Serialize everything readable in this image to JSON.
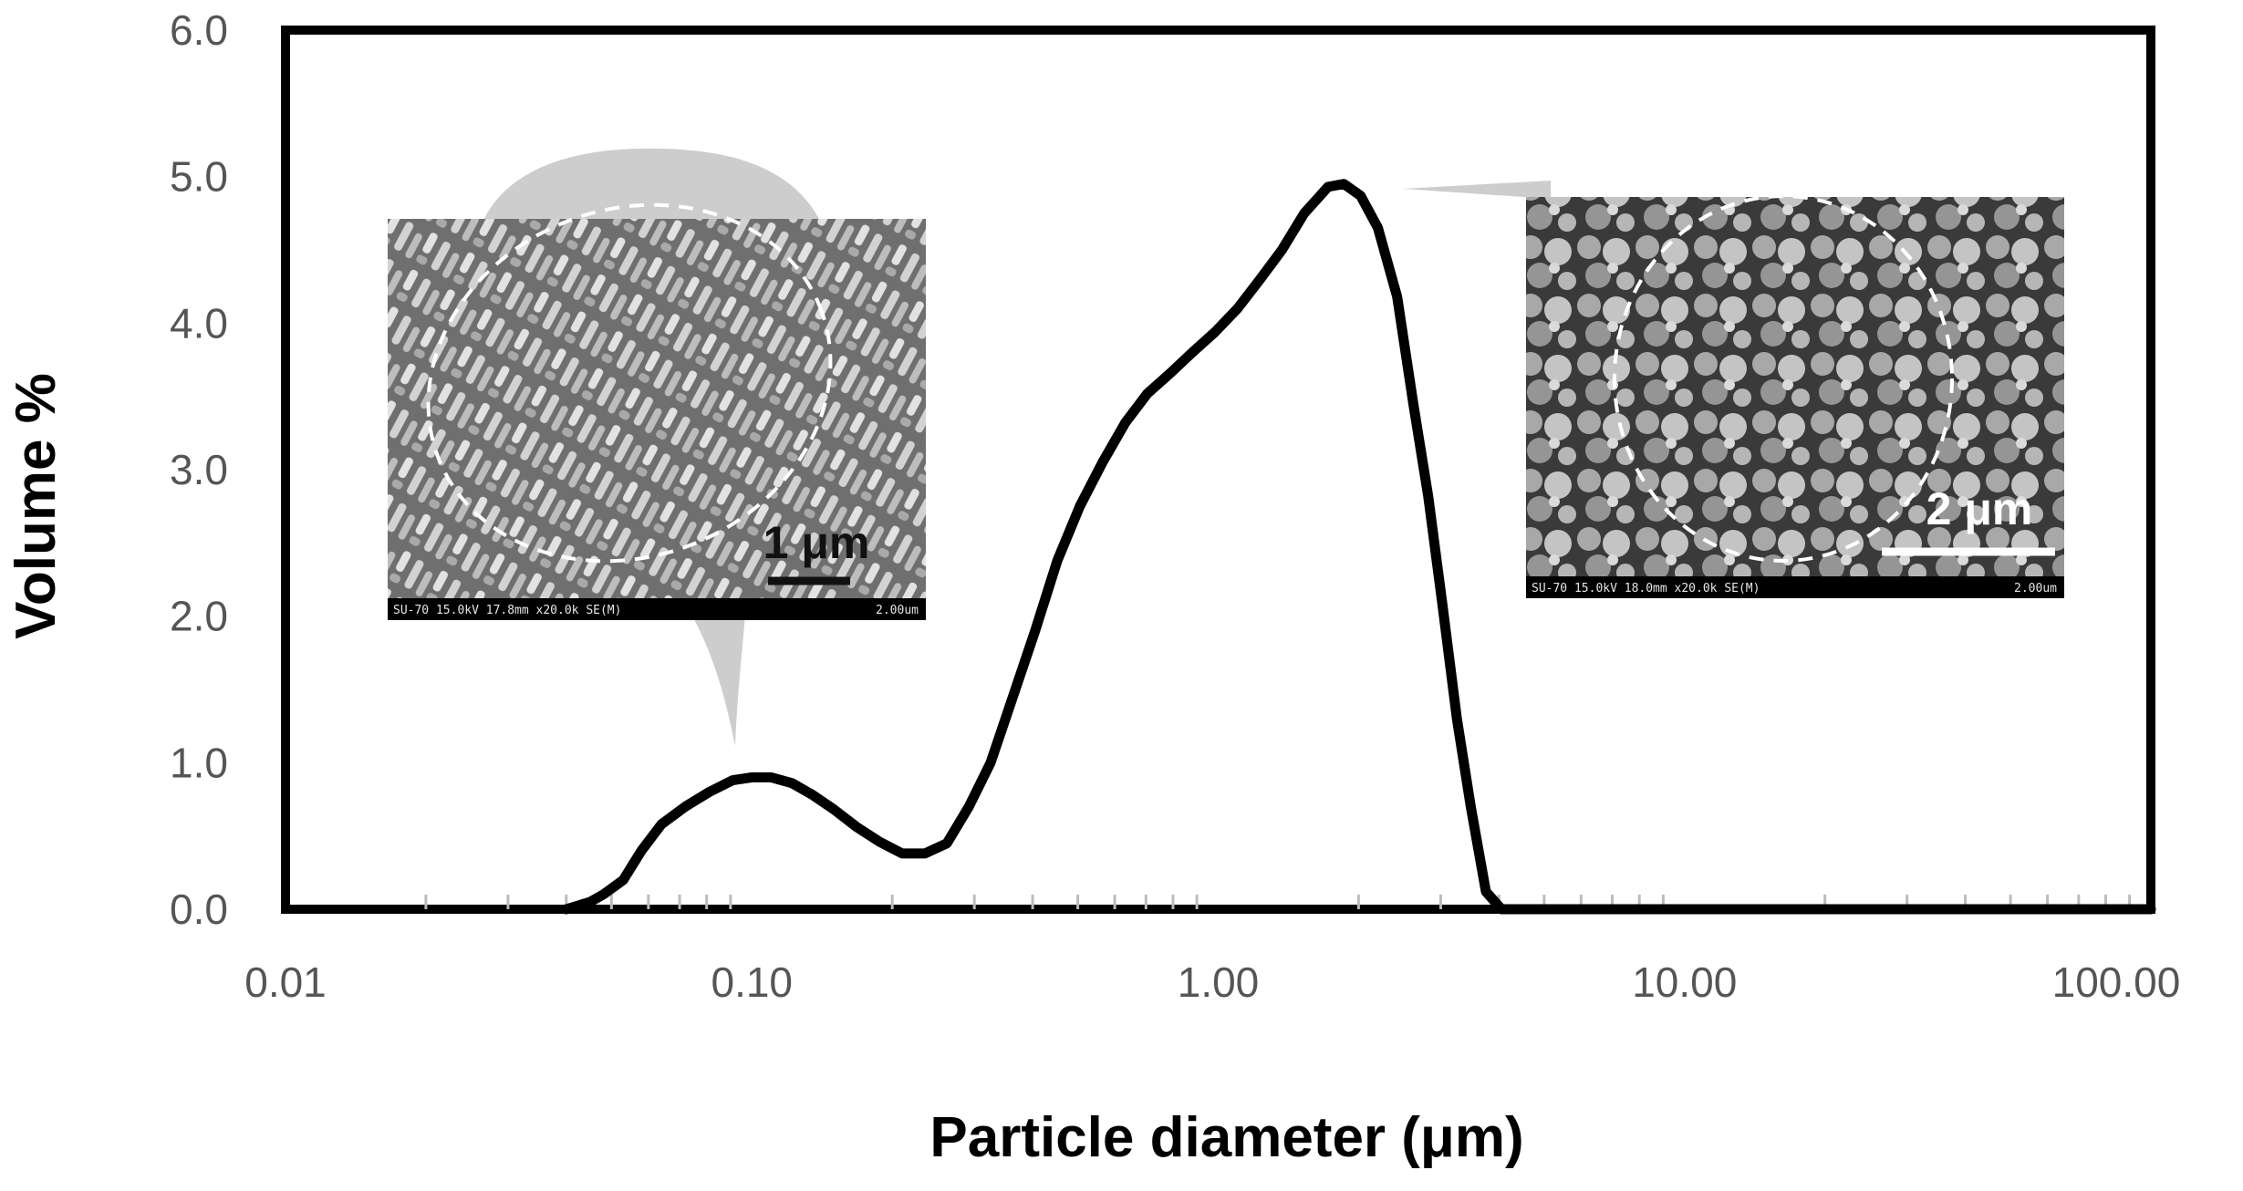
{
  "chart_data": {
    "type": "line",
    "xscale": "log",
    "xlabel": "Particle diameter (μm)",
    "ylabel": "Volume %",
    "xlim": [
      0.01,
      100
    ],
    "ylim": [
      0,
      6
    ],
    "x_ticks": [
      0.01,
      0.1,
      1,
      10,
      100
    ],
    "x_tick_labels": [
      "0.01",
      "0.10",
      "1.00",
      "10.00",
      "100.00"
    ],
    "y_ticks": [
      0,
      1,
      2,
      3,
      4,
      5,
      6
    ],
    "y_tick_labels": [
      "0.0",
      "1.0",
      "2.0",
      "3.0",
      "4.0",
      "5.0",
      "6.0"
    ],
    "grid": false,
    "series": [
      {
        "color": "#000000",
        "x": [
          0.04,
          0.045,
          0.048,
          0.053,
          0.058,
          0.064,
          0.072,
          0.081,
          0.091,
          0.1,
          0.11,
          0.122,
          0.135,
          0.15,
          0.168,
          0.188,
          0.21,
          0.235,
          0.262,
          0.292,
          0.325,
          0.362,
          0.405,
          0.452,
          0.505,
          0.565,
          0.632,
          0.705,
          0.79,
          0.88,
          0.985,
          1.1,
          1.23,
          1.37,
          1.53,
          1.72,
          1.86,
          2.02,
          2.2,
          2.42,
          2.62,
          2.82,
          3.02,
          3.25,
          3.48,
          3.75,
          4.05,
          4.45,
          5.0,
          7.0,
          10.0,
          20.0,
          50.0,
          100.0
        ],
        "values": [
          0.0,
          0.05,
          0.1,
          0.2,
          0.4,
          0.58,
          0.7,
          0.8,
          0.88,
          0.9,
          0.9,
          0.86,
          0.78,
          0.68,
          0.56,
          0.46,
          0.38,
          0.38,
          0.45,
          0.7,
          1.0,
          1.44,
          1.9,
          2.38,
          2.75,
          3.05,
          3.32,
          3.52,
          3.66,
          3.8,
          3.94,
          4.1,
          4.3,
          4.5,
          4.75,
          4.93,
          4.95,
          4.87,
          4.65,
          4.18,
          3.45,
          2.82,
          2.1,
          1.3,
          0.7,
          0.12,
          0.0,
          0.0,
          0.0,
          0.0,
          0.0,
          0.0,
          0.0,
          0.0
        ]
      }
    ],
    "insets": [
      {
        "points_to_x": 0.09,
        "footer": "SU-70 15.0kV 17.8mm x20.0k SE(M)",
        "footer_scale": "2.00um",
        "scale_bar_label": "1 μm"
      },
      {
        "points_to_x": 1.9,
        "footer": "SU-70 15.0kV 18.0mm x20.0k SE(M)",
        "footer_scale": "2.00um",
        "scale_bar_label": "2 μm"
      }
    ]
  }
}
